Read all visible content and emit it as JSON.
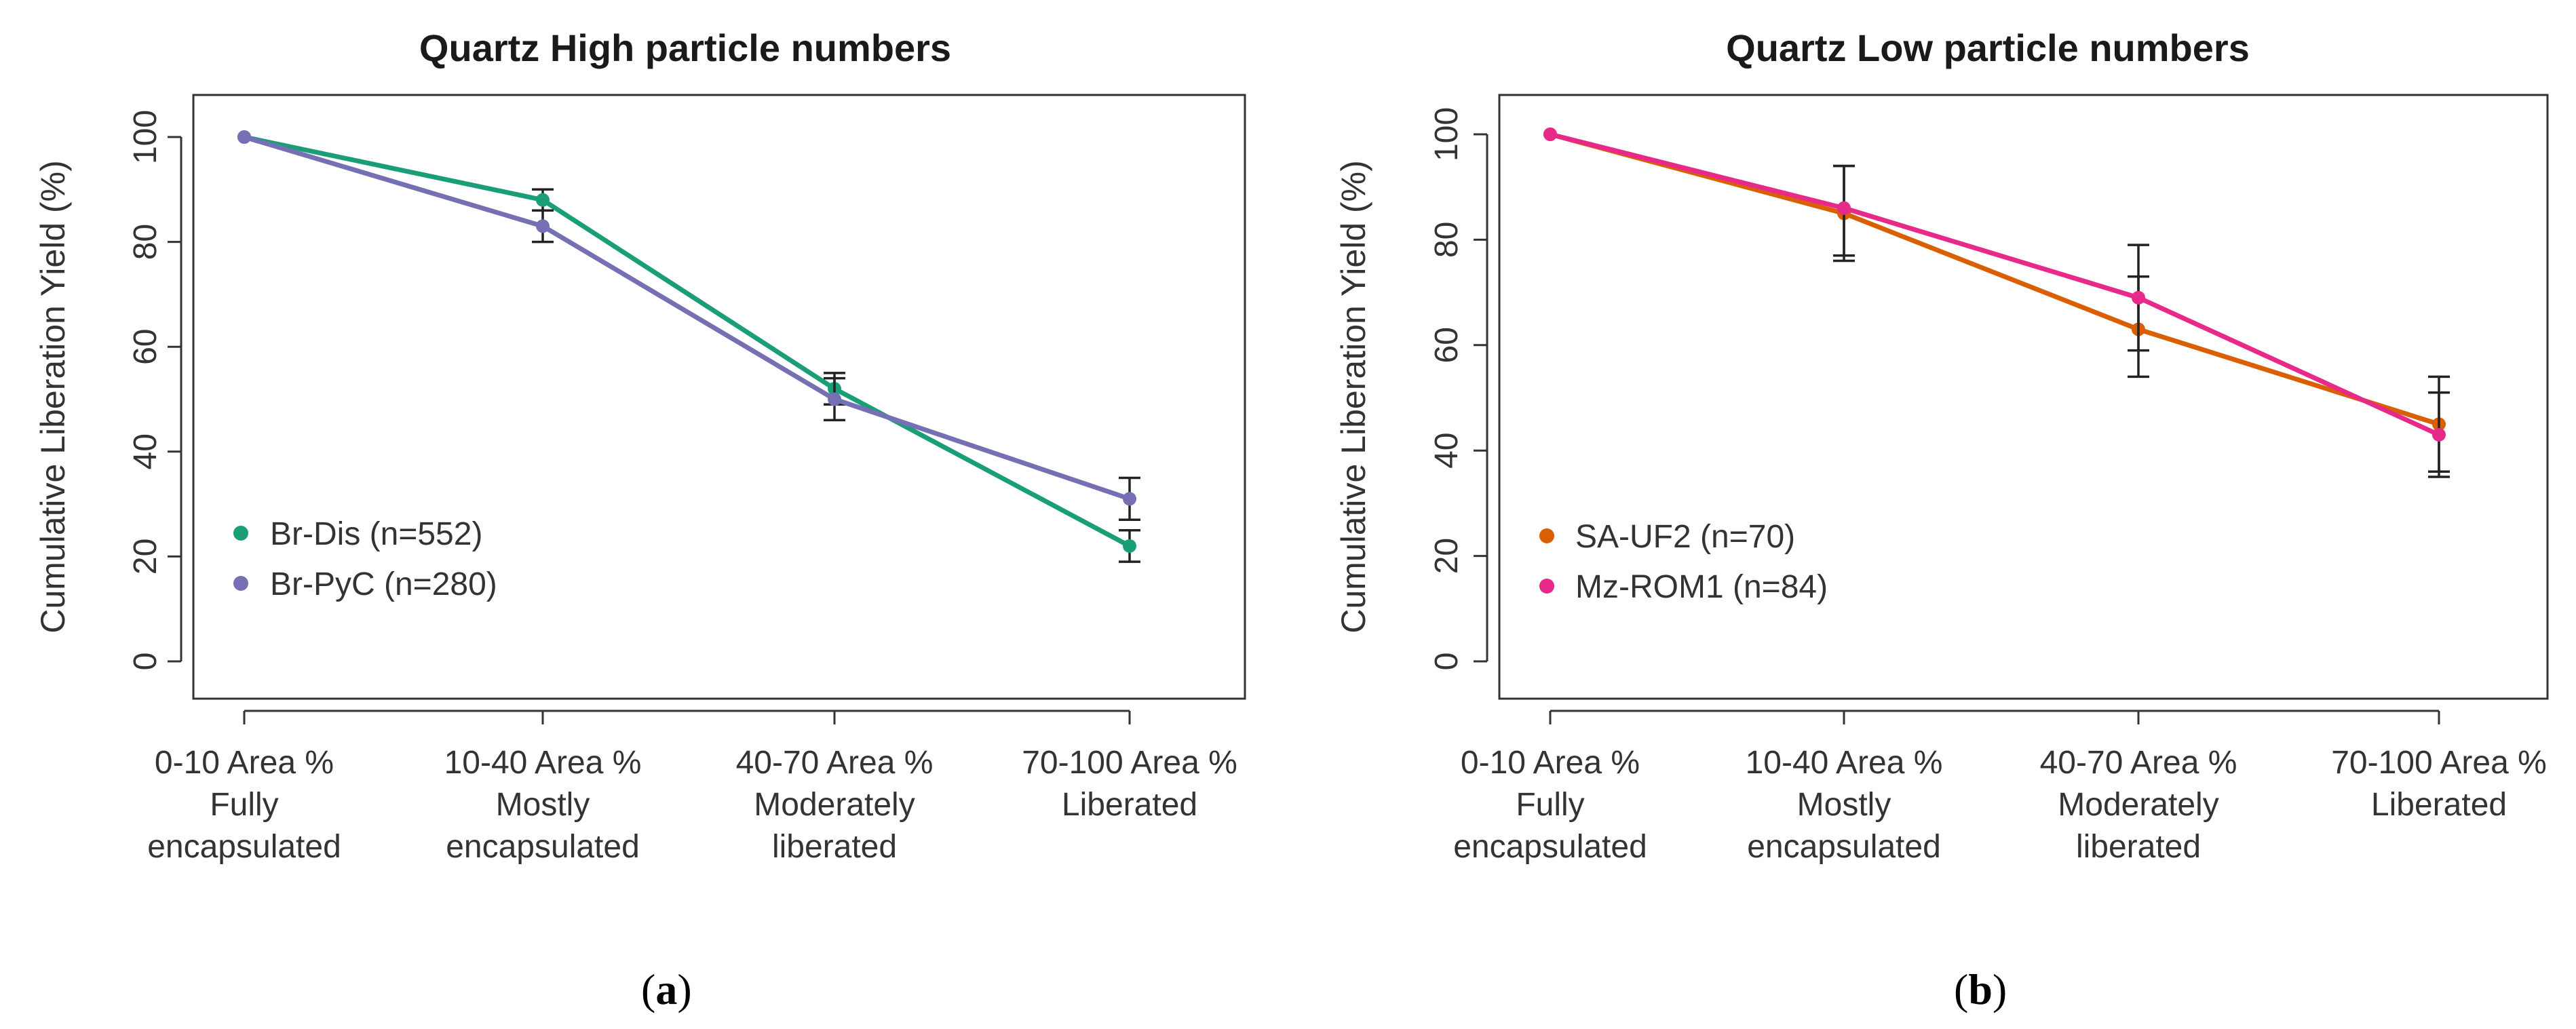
{
  "chart_data": [
    {
      "type": "line",
      "title": "Quartz High particle numbers",
      "ylabel": "Cumulative Liberation Yield (%)",
      "xlabel": "",
      "ylim": [
        0,
        100
      ],
      "yticks": [
        "0",
        "20",
        "40",
        "60",
        "80",
        "100"
      ],
      "categories": [
        [
          "0-10 Area %",
          "Fully",
          "encapsulated"
        ],
        [
          "10-40 Area %",
          "Mostly",
          "encapsulated"
        ],
        [
          "40-70 Area %",
          "Moderately",
          "liberated"
        ],
        [
          "70-100 Area %",
          "Liberated"
        ]
      ],
      "legend_position": "bottom-left",
      "series": [
        {
          "name": "Br-Dis (n=552)",
          "color": "#1a9e77",
          "values": [
            100,
            88,
            52,
            22
          ],
          "err_low": [
            100,
            86,
            49,
            19
          ],
          "err_high": [
            100,
            90,
            55,
            25
          ]
        },
        {
          "name": "Br-PyC (n=280)",
          "color": "#7570b3",
          "values": [
            100,
            83,
            50,
            31
          ],
          "err_low": [
            100,
            80,
            46,
            27
          ],
          "err_high": [
            100,
            86,
            54,
            35
          ]
        }
      ],
      "caption_letter": "a"
    },
    {
      "type": "line",
      "title": "Quartz Low particle numbers",
      "ylabel": "Cumulative Liberation Yield (%)",
      "xlabel": "",
      "ylim": [
        0,
        100
      ],
      "yticks": [
        "0",
        "20",
        "40",
        "60",
        "80",
        "100"
      ],
      "categories": [
        [
          "0-10 Area %",
          "Fully",
          "encapsulated"
        ],
        [
          "10-40 Area %",
          "Mostly",
          "encapsulated"
        ],
        [
          "40-70 Area %",
          "Moderately",
          "liberated"
        ],
        [
          "70-100 Area %",
          "Liberated"
        ]
      ],
      "legend_position": "bottom-left",
      "series": [
        {
          "name": "SA-UF2 (n=70)",
          "color": "#d95f02",
          "values": [
            100,
            85,
            63,
            45
          ],
          "err_low": [
            100,
            77,
            54,
            36
          ],
          "err_high": [
            100,
            94,
            73,
            54
          ]
        },
        {
          "name": "Mz-ROM1 (n=84)",
          "color": "#e7298a",
          "values": [
            100,
            86,
            69,
            43
          ],
          "err_low": [
            100,
            76,
            59,
            35
          ],
          "err_high": [
            100,
            94,
            79,
            51
          ]
        }
      ],
      "caption_letter": "b"
    }
  ]
}
